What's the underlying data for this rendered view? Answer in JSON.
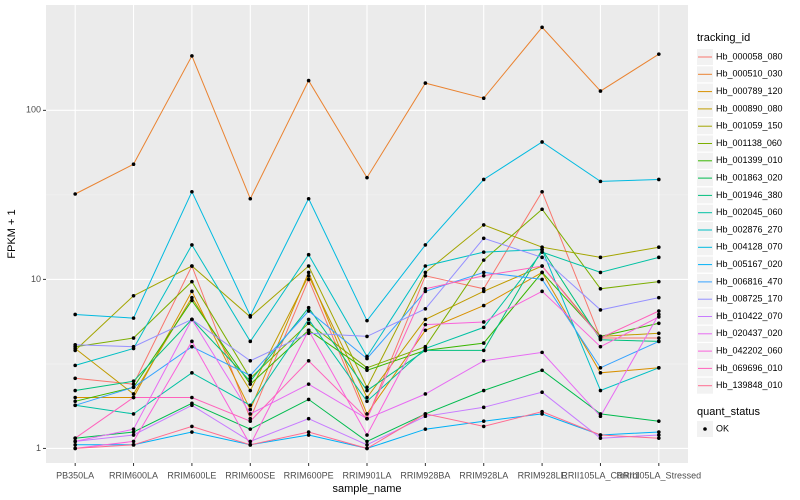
{
  "chart_data": {
    "type": "line",
    "x_label": "sample_name",
    "y_label": "FPKM + 1",
    "log_y": true,
    "grid": true,
    "legend_title": "tracking_id",
    "legend_position": "right",
    "shape_legend": {
      "title": "quant_status",
      "labels": [
        "OK"
      ]
    },
    "categories": [
      "PB350LA",
      "RRIM600LA",
      "RRIM600LE",
      "RRIM600SE",
      "RRIM600PE",
      "RRIM901LA",
      "RRIM928BA",
      "RRIM928LA",
      "RRIM928LE",
      "RRII105LA_Control",
      "RRII105LA_Stressed"
    ],
    "ylim": [
      0.82,
      420
    ],
    "yticks": [
      1,
      10,
      100
    ],
    "series": [
      {
        "name": "Hb_000058_080",
        "color": "#F8766D",
        "values": [
          2.6,
          2.4,
          12,
          1.5,
          10,
          1.5,
          10.5,
          8.8,
          33,
          4.5,
          4.5
        ]
      },
      {
        "name": "Hb_000510_030",
        "color": "#EA8331",
        "values": [
          32,
          48,
          210,
          30,
          150,
          40,
          145,
          118,
          310,
          130,
          215
        ]
      },
      {
        "name": "Hb_000789_120",
        "color": "#D89000",
        "values": [
          2.0,
          2.0,
          8.5,
          1.7,
          11,
          1.6,
          5.0,
          7.0,
          11,
          2.8,
          3.0
        ]
      },
      {
        "name": "Hb_000890_080",
        "color": "#C09B00",
        "values": [
          3.9,
          2.1,
          7.8,
          2.2,
          10.5,
          2.0,
          5.8,
          8.5,
          12,
          4.6,
          4.8
        ]
      },
      {
        "name": "Hb_001059_150",
        "color": "#A3A500",
        "values": [
          3.8,
          8,
          12,
          6,
          12,
          2.3,
          11,
          21,
          15.5,
          13.5,
          15.5
        ]
      },
      {
        "name": "Hb_001138_060",
        "color": "#7CAE00",
        "values": [
          4.0,
          4.5,
          9.7,
          2.6,
          5.5,
          3.0,
          4.0,
          13,
          26,
          8.8,
          9.7
        ]
      },
      {
        "name": "Hb_001399_010",
        "color": "#39B600",
        "values": [
          1.9,
          2.3,
          7.5,
          2.4,
          5.0,
          2.9,
          3.8,
          4.2,
          11,
          4.6,
          5.5
        ]
      },
      {
        "name": "Hb_001863_020",
        "color": "#00BB4E",
        "values": [
          1.15,
          1.25,
          1.85,
          1.3,
          1.95,
          1.1,
          1.6,
          2.2,
          2.9,
          1.6,
          1.45
        ]
      },
      {
        "name": "Hb_001946_380",
        "color": "#00BF7D",
        "values": [
          2.2,
          2.5,
          5.8,
          2.5,
          6.8,
          2.2,
          3.8,
          3.8,
          15,
          4.4,
          4.3
        ]
      },
      {
        "name": "Hb_002045_060",
        "color": "#00C1A3",
        "values": [
          1.8,
          1.6,
          2.8,
          1.8,
          5.8,
          1.9,
          3.9,
          5.2,
          14.5,
          11,
          13.5
        ]
      },
      {
        "name": "Hb_002876_270",
        "color": "#00BFC4",
        "values": [
          3.1,
          3.9,
          16,
          4.3,
          14,
          3.5,
          12,
          14.5,
          15,
          2.2,
          3.0
        ]
      },
      {
        "name": "Hb_004128_070",
        "color": "#00BAE0",
        "values": [
          6.2,
          5.9,
          33,
          6.1,
          30,
          5.7,
          16,
          39,
          65,
          38,
          39
        ]
      },
      {
        "name": "Hb_005167_020",
        "color": "#00B0F6",
        "values": [
          1.05,
          1.05,
          1.25,
          1.05,
          1.2,
          1.0,
          1.3,
          1.45,
          1.6,
          1.2,
          1.25
        ]
      },
      {
        "name": "Hb_006816_470",
        "color": "#35A2FF",
        "values": [
          1.8,
          2.3,
          4.0,
          2.7,
          6.5,
          3.4,
          8.5,
          11,
          10,
          3.0,
          4.3
        ]
      },
      {
        "name": "Hb_008725_170",
        "color": "#9590FF",
        "values": [
          4.1,
          4.0,
          5.8,
          3.3,
          4.8,
          4.6,
          6.7,
          17.5,
          13.5,
          6.6,
          7.8
        ]
      },
      {
        "name": "Hb_010422_070",
        "color": "#C77CFF",
        "values": [
          1.1,
          1.2,
          1.8,
          1.1,
          1.5,
          1.05,
          1.55,
          1.75,
          2.15,
          1.15,
          1.2
        ]
      },
      {
        "name": "Hb_020437_020",
        "color": "#E76BF3",
        "values": [
          1.1,
          1.3,
          5.8,
          1.6,
          2.4,
          1.5,
          2.1,
          3.3,
          3.7,
          1.55,
          6.2
        ]
      },
      {
        "name": "Hb_042202_060",
        "color": "#FA62DB",
        "values": [
          1.0,
          1.1,
          4.3,
          1.05,
          5.0,
          1.2,
          5.4,
          5.6,
          8.5,
          4.0,
          6.0
        ]
      },
      {
        "name": "Hb_069696_010",
        "color": "#FF62BC",
        "values": [
          1.15,
          2.0,
          2.0,
          1.45,
          3.3,
          1.5,
          8.8,
          10.5,
          12,
          4.5,
          6.5
        ]
      },
      {
        "name": "Hb_139848_010",
        "color": "#FF6C91",
        "values": [
          1.0,
          1.05,
          1.35,
          1.05,
          1.25,
          1.0,
          1.6,
          1.35,
          1.65,
          1.2,
          1.15
        ]
      }
    ]
  }
}
